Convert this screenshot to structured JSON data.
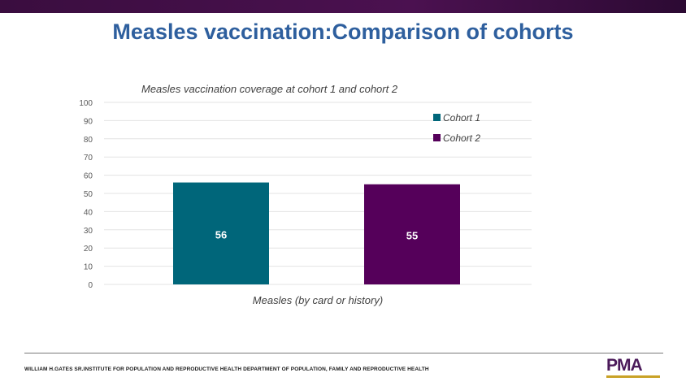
{
  "slide": {
    "title": "Measles vaccination:Comparison of cohorts",
    "footer": "WILLIAM H.GATES SR.INSTITUTE FOR POPULATION AND REPRODUCTIVE HEALTH DEPARTMENT OF POPULATION, FAMILY AND REPRODUCTIVE HEALTH",
    "logo_text": "PMA",
    "band_color": "#3a0d3f"
  },
  "chart_data": {
    "type": "bar",
    "title": "Measles vaccination coverage at cohort 1 and cohort 2",
    "categories": [
      "Measles (by card or history)"
    ],
    "series": [
      {
        "name": "Cohort 1",
        "values": [
          56
        ],
        "color": "#00667a"
      },
      {
        "name": "Cohort 2",
        "values": [
          55
        ],
        "color": "#55005a"
      }
    ],
    "ylim": [
      0,
      100
    ],
    "yticks": [
      0,
      10,
      20,
      30,
      40,
      50,
      60,
      70,
      80,
      90,
      100
    ],
    "grid": true,
    "legend_position": "top-right",
    "data_labels": true
  }
}
